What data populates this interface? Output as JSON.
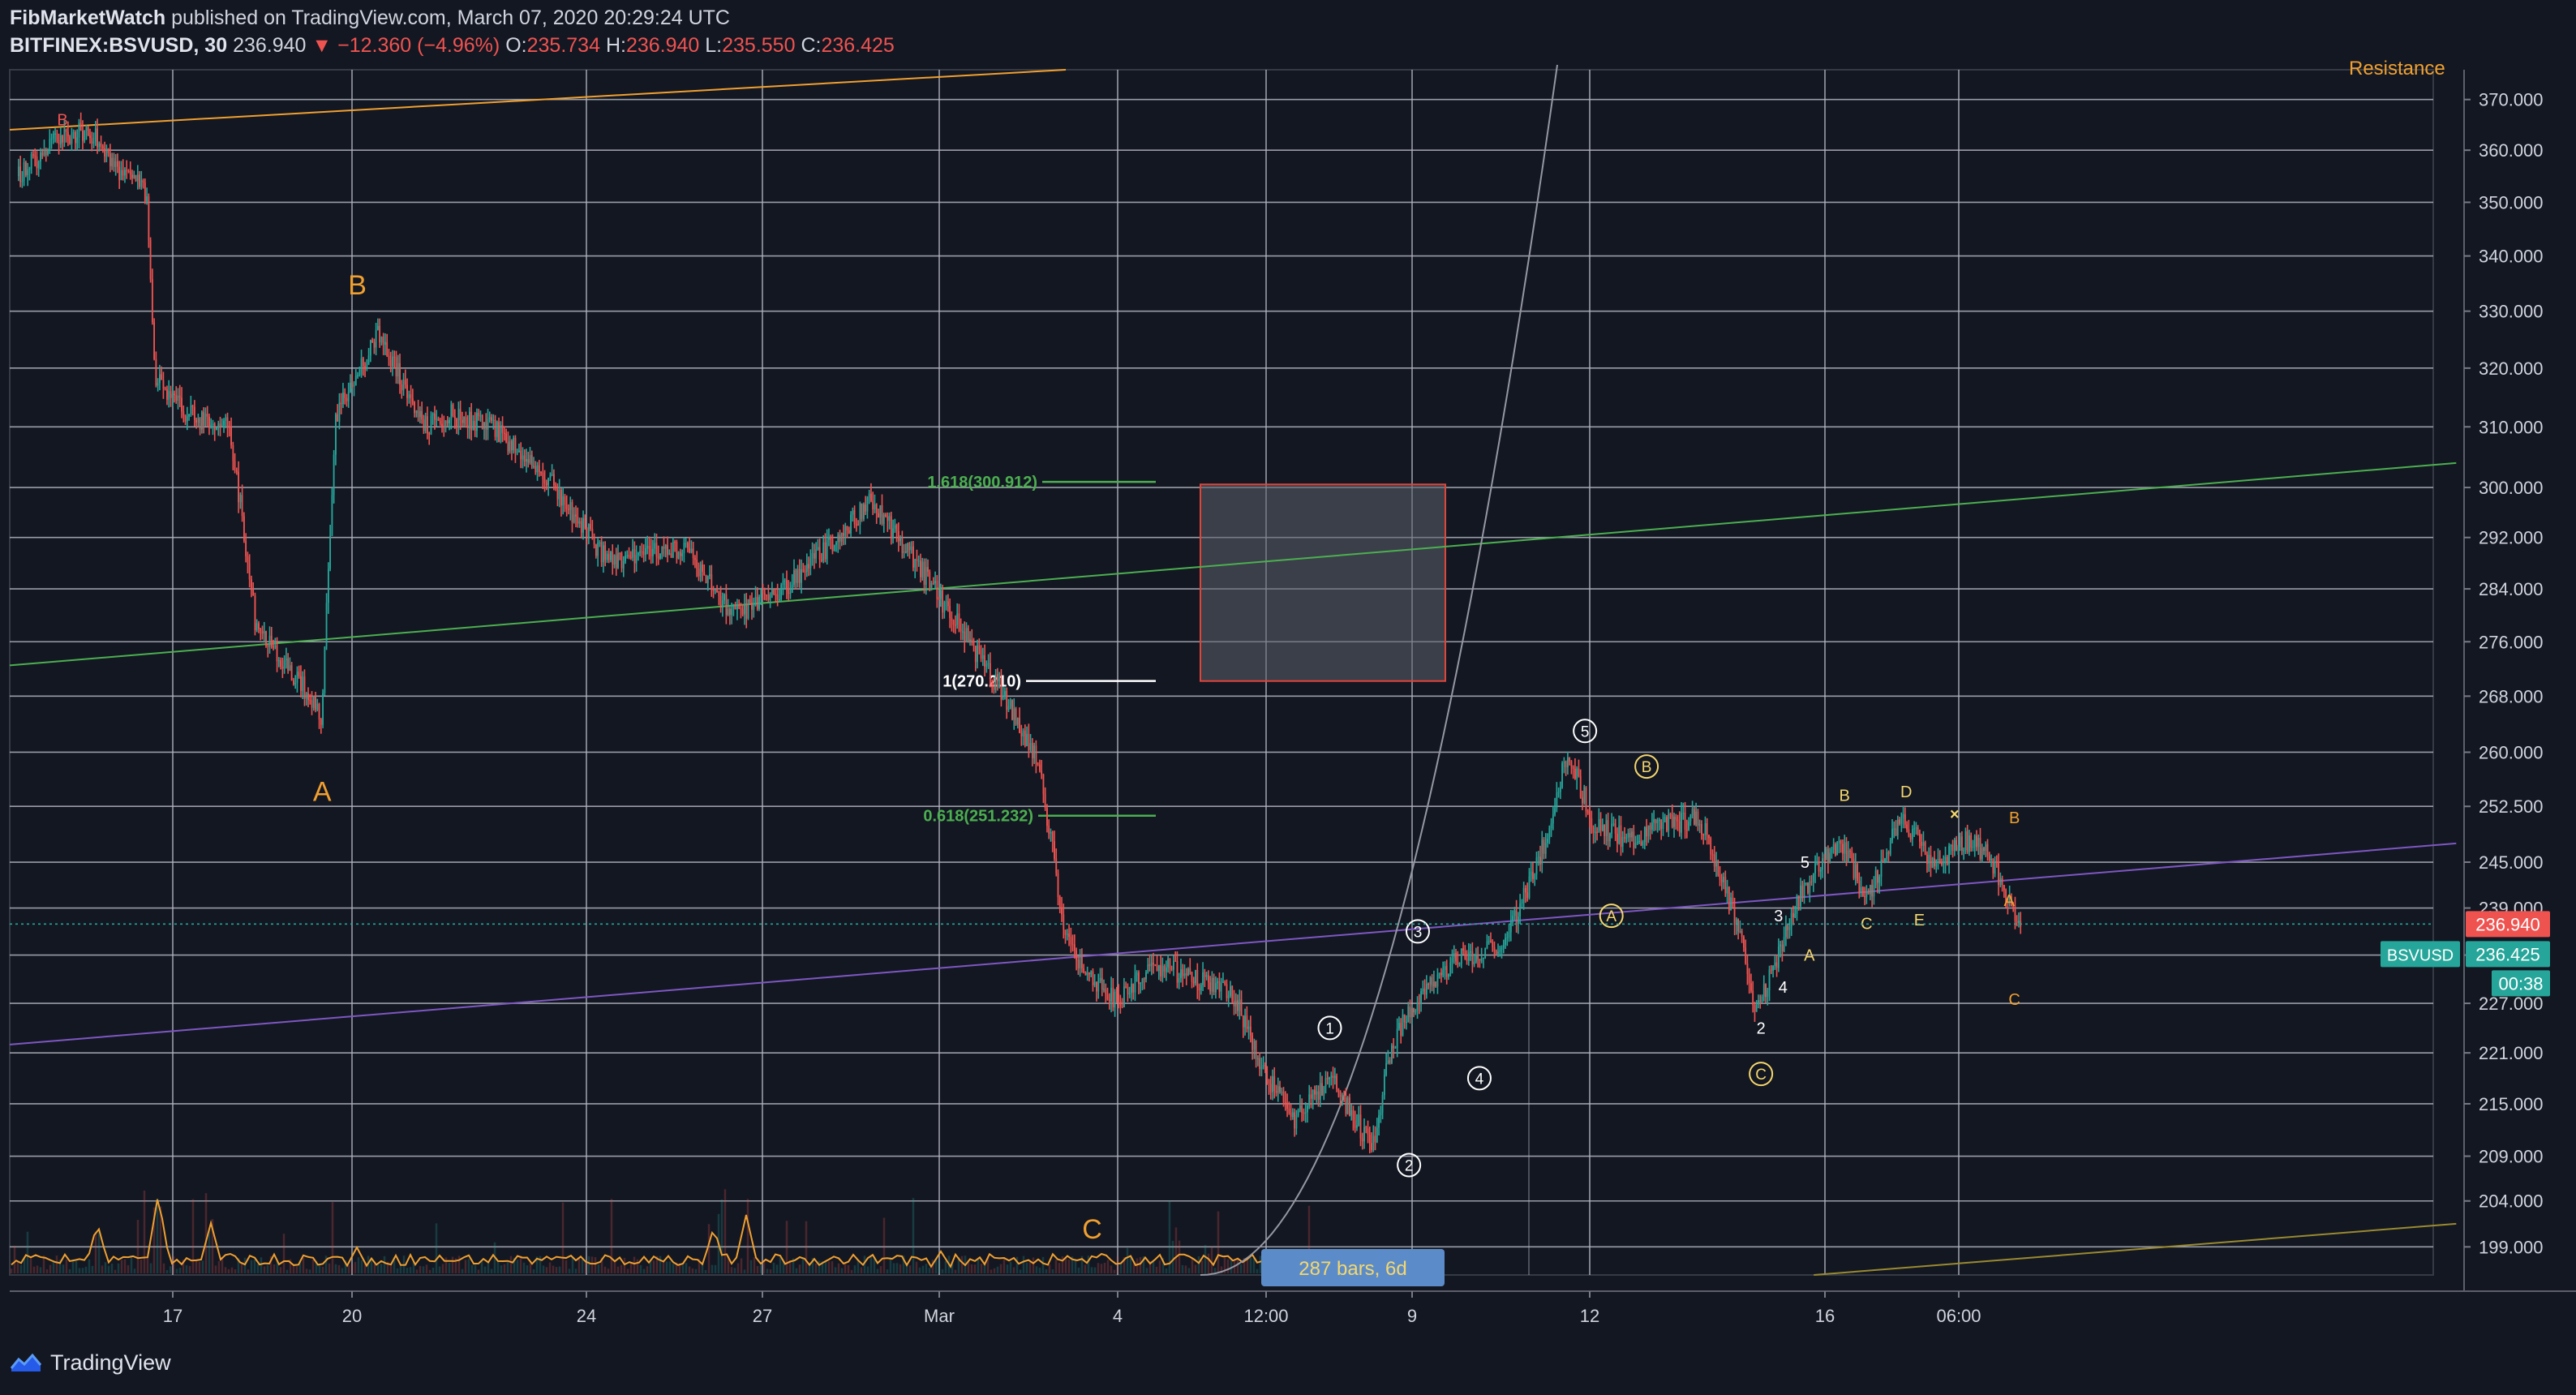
{
  "header": {
    "author": "FibMarketWatch",
    "published": "published on TradingView.com, March 07, 2020 20:29:24 UTC",
    "symbol": "BITFINEX:BSVUSD, 30",
    "last": "236.940",
    "change_arrow": "▼",
    "change": "−12.360 (−4.96%)",
    "o_label": "O:",
    "o": "235.734",
    "h_label": "H:",
    "h": "236.940",
    "l_label": "L:",
    "l": "235.550",
    "c_label": "C:",
    "c": "236.425"
  },
  "footer": {
    "brand": "TradingView",
    "logo_icon": "tradingview-logo-icon"
  },
  "colors": {
    "background": "#131722",
    "grid": "#b2b5be",
    "up": "#26a69a",
    "down": "#ef5350",
    "fib_green": "#4caf50",
    "purple": "#7e57c2",
    "orange": "#f0a030",
    "label_yellow": "#f5d76e"
  },
  "chart_data": {
    "type": "line",
    "series_style": "candlestick",
    "scale": "log",
    "ylim": [
      196,
      376
    ],
    "y_ticks": [
      199,
      204,
      209,
      215,
      221,
      227,
      233,
      239,
      245,
      252.5,
      260,
      268,
      276,
      284,
      292,
      300,
      310,
      320,
      330,
      340,
      350,
      360,
      370
    ],
    "y_tick_labels": [
      "199.000",
      "204.000",
      "209.000",
      "215.000",
      "221.000",
      "227.000",
      "",
      "239.000",
      "245.000",
      "252.500",
      "260.000",
      "268.000",
      "276.000",
      "284.000",
      "292.000",
      "300.000",
      "310.000",
      "320.000",
      "330.000",
      "340.000",
      "350.000",
      "360.000",
      "370.000"
    ],
    "x_axis_labels": [
      "17",
      "20",
      "24",
      "27",
      "Mar",
      "4",
      "12:00",
      "9",
      "12",
      "16",
      "06:00"
    ],
    "price_path": [
      {
        "d": 14.1,
        "p": 355
      },
      {
        "d": 14.5,
        "p": 362
      },
      {
        "d": 14.9,
        "p": 364
      },
      {
        "d": 15.3,
        "p": 355
      },
      {
        "d": 15.55,
        "p": 352
      },
      {
        "d": 15.65,
        "p": 318
      },
      {
        "d": 16.0,
        "p": 312
      },
      {
        "d": 16.5,
        "p": 310
      },
      {
        "d": 16.8,
        "p": 278
      },
      {
        "d": 17.0,
        "p": 275
      },
      {
        "d": 17.3,
        "p": 270
      },
      {
        "d": 17.55,
        "p": 265
      },
      {
        "d": 17.7,
        "p": 312
      },
      {
        "d": 18.2,
        "p": 326
      },
      {
        "d": 18.7,
        "p": 310
      },
      {
        "d": 19.0,
        "p": 312
      },
      {
        "d": 19.5,
        "p": 310
      },
      {
        "d": 20.2,
        "p": 300
      },
      {
        "d": 20.8,
        "p": 288
      },
      {
        "d": 21.2,
        "p": 290
      },
      {
        "d": 21.7,
        "p": 290
      },
      {
        "d": 22.2,
        "p": 280
      },
      {
        "d": 22.8,
        "p": 284
      },
      {
        "d": 23.4,
        "p": 292
      },
      {
        "d": 23.8,
        "p": 298
      },
      {
        "d": 24.3,
        "p": 288
      },
      {
        "d": 24.8,
        "p": 278
      },
      {
        "d": 25.3,
        "p": 268
      },
      {
        "d": 25.7,
        "p": 258
      },
      {
        "d": 26.0,
        "p": 235
      },
      {
        "d": 26.3,
        "p": 230
      },
      {
        "d": 26.6,
        "p": 227
      },
      {
        "d": 27.0,
        "p": 232
      },
      {
        "d": 27.5,
        "p": 230
      },
      {
        "d": 27.9,
        "p": 228
      },
      {
        "d": 28.3,
        "p": 218
      },
      {
        "d": 28.6,
        "p": 213
      },
      {
        "d": 29.0,
        "p": 218
      },
      {
        "d": 29.3,
        "p": 213
      },
      {
        "d": 29.5,
        "p": 210
      },
      {
        "d": 29.7,
        "p": 222
      },
      {
        "d": 30.0,
        "p": 228
      },
      {
        "d": 30.4,
        "p": 232
      },
      {
        "d": 31.0,
        "p": 235
      },
      {
        "d": 31.4,
        "p": 246
      },
      {
        "d": 31.7,
        "p": 260
      },
      {
        "d": 32.0,
        "p": 250
      },
      {
        "d": 32.4,
        "p": 248
      },
      {
        "d": 32.8,
        "p": 250
      },
      {
        "d": 33.2,
        "p": 251
      },
      {
        "d": 33.6,
        "p": 238
      },
      {
        "d": 33.85,
        "p": 226
      },
      {
        "d": 34.0,
        "p": 230
      },
      {
        "d": 34.3,
        "p": 240
      },
      {
        "d": 34.8,
        "p": 248
      },
      {
        "d": 35.1,
        "p": 240
      },
      {
        "d": 35.5,
        "p": 251
      },
      {
        "d": 35.9,
        "p": 244
      },
      {
        "d": 36.2,
        "p": 248
      },
      {
        "d": 36.5,
        "p": 246
      },
      {
        "d": 36.7,
        "p": 240
      },
      {
        "d": 36.85,
        "p": 236
      }
    ],
    "annotations": [
      {
        "text": "B",
        "d": 14.6,
        "p": 366,
        "color": "#ef5350"
      },
      {
        "text": "B",
        "d": 17.95,
        "p": 334,
        "color": "#f0a030"
      },
      {
        "text": "A",
        "d": 17.55,
        "p": 254,
        "color": "#f0a030"
      },
      {
        "text": "C",
        "d": 26.3,
        "p": 200.5,
        "color": "#f0a030"
      },
      {
        "text": "1",
        "d": 29.0,
        "p": 224,
        "circle": true,
        "color": "#ffffff"
      },
      {
        "text": "2",
        "d": 29.9,
        "p": 208,
        "circle": true,
        "color": "#ffffff"
      },
      {
        "text": "3",
        "d": 30.0,
        "p": 236,
        "circle": true,
        "color": "#ffffff"
      },
      {
        "text": "4",
        "d": 30.7,
        "p": 218,
        "circle": true,
        "color": "#ffffff"
      },
      {
        "text": "5",
        "d": 31.9,
        "p": 263,
        "circle": true,
        "color": "#ffffff"
      },
      {
        "text": "A",
        "d": 32.2,
        "p": 238,
        "circle": true,
        "color": "#f5d76e"
      },
      {
        "text": "B",
        "d": 32.6,
        "p": 258,
        "circle": true,
        "color": "#f5d76e"
      },
      {
        "text": "C",
        "d": 33.9,
        "p": 218.5,
        "circle": true,
        "color": "#f5d76e"
      },
      {
        "text": "2",
        "d": 33.9,
        "p": 224,
        "color": "#ffffff"
      },
      {
        "text": "3",
        "d": 34.1,
        "p": 238,
        "color": "#ffffff"
      },
      {
        "text": "4",
        "d": 34.15,
        "p": 229,
        "color": "#ffffff"
      },
      {
        "text": "5",
        "d": 34.4,
        "p": 245,
        "color": "#ffffff"
      },
      {
        "text": "A",
        "d": 34.45,
        "p": 233,
        "color": "#f5d76e"
      },
      {
        "text": "B",
        "d": 34.85,
        "p": 254,
        "color": "#f5d76e"
      },
      {
        "text": "C",
        "d": 35.1,
        "p": 237,
        "color": "#f5d76e"
      },
      {
        "text": "D",
        "d": 35.55,
        "p": 254.5,
        "color": "#f5d76e"
      },
      {
        "text": "E",
        "d": 35.7,
        "p": 237.5,
        "color": "#f5d76e"
      },
      {
        "text": "×",
        "d": 36.1,
        "p": 251.5,
        "color": "#f5d76e"
      },
      {
        "text": "B",
        "d": 36.78,
        "p": 251,
        "color": "#f0a030"
      },
      {
        "text": "A",
        "d": 36.72,
        "p": 240,
        "color": "#f0a030"
      },
      {
        "text": "C",
        "d": 36.78,
        "p": 227.5,
        "color": "#f0a030"
      }
    ],
    "fib_levels": [
      {
        "label": "1.618(300.912)",
        "value": 300.912,
        "color": "#4caf50"
      },
      {
        "label": "1(270.210)",
        "value": 270.21,
        "color": "#ffffff"
      },
      {
        "label": "0.618(251.232)",
        "value": 251.232,
        "color": "#4caf50"
      }
    ],
    "target_box": {
      "price_low": 270.2,
      "price_high": 300.5
    },
    "trendlines": [
      {
        "name": "green",
        "from": [
          14,
          272.5
        ],
        "to": [
          41.8,
          304
        ],
        "color": "#4caf50"
      },
      {
        "name": "purple",
        "from": [
          14,
          222
        ],
        "to": [
          41.8,
          247.5
        ],
        "color": "#7e57c2"
      },
      {
        "name": "orange-upper",
        "from": [
          14,
          364
        ],
        "to": [
          26.0,
          376
        ],
        "color": "#f0a030"
      },
      {
        "name": "olive-lower",
        "from": [
          34.5,
          196
        ],
        "to": [
          41.8,
          201.5
        ],
        "color": "#9a8a30"
      }
    ],
    "partial_text": "Resistance",
    "price_labels": [
      {
        "text": "236.940",
        "value": 236.94,
        "color": "#ef5350"
      },
      {
        "text": "236.425",
        "value": 236.425,
        "color": "#26a69a",
        "tag": "BSVUSD"
      }
    ],
    "countdown": "00:38",
    "bars_info": "287 bars, 6d"
  }
}
